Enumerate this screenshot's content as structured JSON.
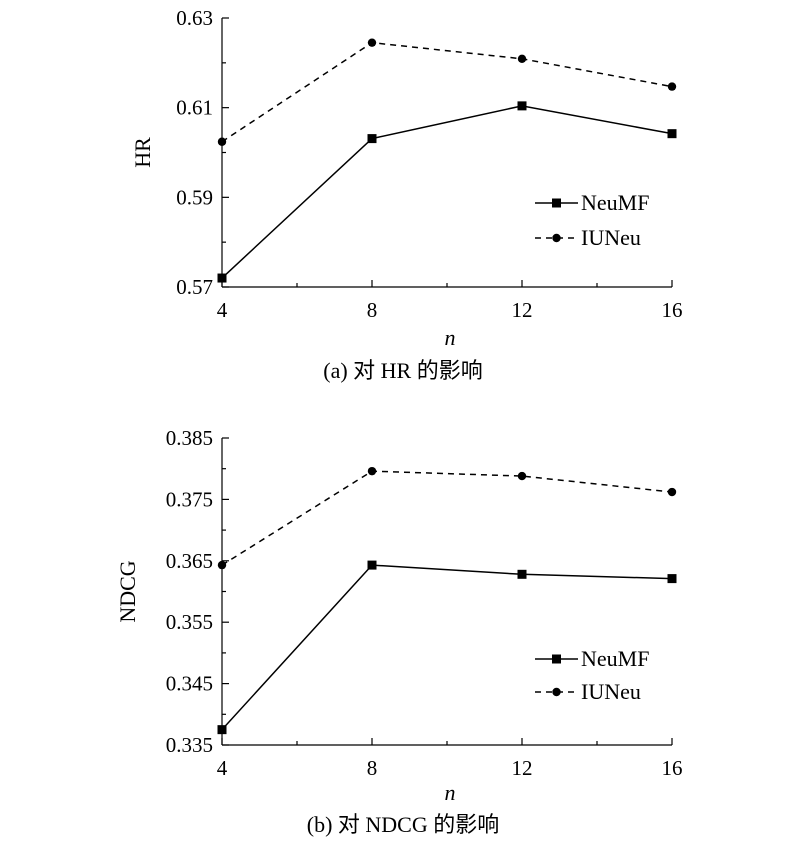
{
  "chart_data": [
    {
      "type": "line",
      "x": [
        4,
        8,
        12,
        16
      ],
      "xticks": [
        "4",
        "8",
        "12",
        "16"
      ],
      "xlabel": "n",
      "ylabel": "HR",
      "ylim": [
        0.57,
        0.63
      ],
      "yticks": [
        "0.57",
        "0.59",
        "0.61",
        "0.63"
      ],
      "caption": "(a) 对 HR 的影响",
      "legend_position": "right",
      "series": [
        {
          "name": "NeuMF",
          "values": [
            0.572,
            0.6031,
            0.6104,
            0.6042
          ],
          "style": "solid",
          "marker": "square"
        },
        {
          "name": "IUNeu",
          "values": [
            0.6024,
            0.6245,
            0.6209,
            0.6147
          ],
          "style": "dashed",
          "marker": "circle"
        }
      ]
    },
    {
      "type": "line",
      "x": [
        4,
        8,
        12,
        16
      ],
      "xticks": [
        "4",
        "8",
        "12",
        "16"
      ],
      "xlabel": "n",
      "ylabel": "NDCG",
      "ylim": [
        0.335,
        0.385
      ],
      "yticks": [
        "0.335",
        "0.345",
        "0.355",
        "0.365",
        "0.375",
        "0.385"
      ],
      "caption": "(b) 对 NDCG 的影响",
      "legend_position": "right",
      "series": [
        {
          "name": "NeuMF",
          "values": [
            0.3375,
            0.3643,
            0.3628,
            0.3621
          ],
          "style": "solid",
          "marker": "square"
        },
        {
          "name": "IUNeu",
          "values": [
            0.3643,
            0.3796,
            0.3788,
            0.3762
          ],
          "style": "dashed",
          "marker": "circle"
        }
      ]
    }
  ]
}
